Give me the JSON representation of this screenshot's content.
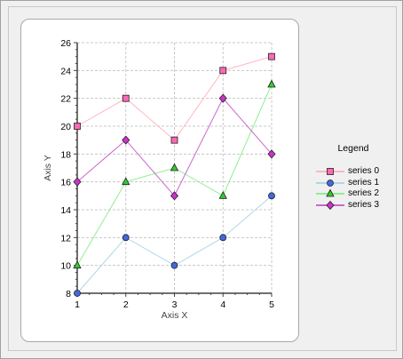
{
  "chart_data": {
    "type": "line",
    "xlabel": "Axis X",
    "ylabel": "Axis Y",
    "x": [
      1,
      2,
      3,
      4,
      5
    ],
    "xlim": [
      1,
      5
    ],
    "ylim": [
      8,
      26
    ],
    "x_ticks": [
      "1",
      "2",
      "3",
      "4",
      "5"
    ],
    "y_ticks": [
      "8",
      "10",
      "12",
      "14",
      "16",
      "18",
      "20",
      "22",
      "24",
      "26"
    ],
    "grid": true,
    "legend_title": "Legend",
    "legend_position": "right",
    "series": [
      {
        "name": "series 0",
        "values": [
          20,
          22,
          19,
          24,
          25
        ],
        "line_color": "#ffb6c1",
        "marker": "square",
        "marker_fill": "#ff69b4"
      },
      {
        "name": "series 1",
        "values": [
          8,
          12,
          10,
          12,
          15
        ],
        "line_color": "#add8e6",
        "marker": "circle",
        "marker_fill": "#4169e1"
      },
      {
        "name": "series 2",
        "values": [
          10,
          16,
          17,
          15,
          23
        ],
        "line_color": "#90ee90",
        "marker": "triangle",
        "marker_fill": "#32cd32"
      },
      {
        "name": "series 3",
        "values": [
          16,
          19,
          15,
          22,
          18
        ],
        "line_color": "#cc66cc",
        "marker": "diamond",
        "marker_fill": "#cc33cc"
      }
    ]
  }
}
